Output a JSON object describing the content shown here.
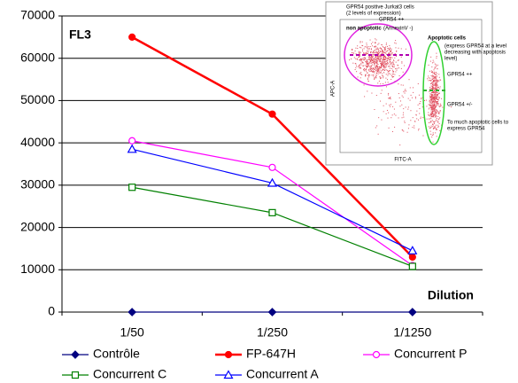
{
  "chart_data": {
    "type": "line",
    "annotations": {
      "panel": "FL3",
      "x_note": "Dilution"
    },
    "categories": [
      "1/50",
      "1/250",
      "1/1250"
    ],
    "series": [
      {
        "name": "Contrôle",
        "color": "#000080",
        "marker": "diamond",
        "values": [
          0,
          0,
          0
        ]
      },
      {
        "name": "FP-647H",
        "color": "#ff0000",
        "marker": "circle-filled",
        "values": [
          65000,
          46800,
          13000
        ]
      },
      {
        "name": "Concurrent P",
        "color": "#ff00ff",
        "marker": "circle-open",
        "values": [
          40500,
          34200,
          11000
        ]
      },
      {
        "name": "Concurrent C",
        "color": "#008000",
        "marker": "square-open",
        "values": [
          29500,
          23500,
          10800
        ]
      },
      {
        "name": "Concurrent A",
        "color": "#0000ff",
        "marker": "triangle-open",
        "values": [
          38500,
          30500,
          14500
        ]
      }
    ],
    "ylim": [
      0,
      70000
    ],
    "yticks": [
      0,
      10000,
      20000,
      30000,
      40000,
      50000,
      60000,
      70000
    ],
    "grid": true,
    "inset": {
      "title_lines": [
        "GPR54 positive Jurkat3 cells",
        "(2 levels of expression)"
      ],
      "top_label": "GPR54 ++",
      "non_apoptotic": "non apoptotic",
      "annexin": "(AnnexinV -)",
      "apoptotic": "Apoptotic cells",
      "apoptotic_note": [
        "(express GPR54 at a level",
        "decreasing with apoptosis",
        "level)"
      ],
      "high": "GPR54 ++",
      "mid": "GPR54 +/-",
      "too_much": [
        "To much apoptotic cells to",
        "express GPR54"
      ],
      "x_axis": "FITC-A",
      "y_axis": "APC-A"
    }
  }
}
